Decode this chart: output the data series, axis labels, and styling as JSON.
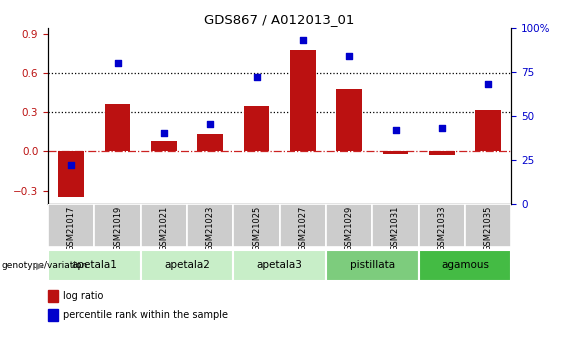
{
  "title": "GDS867 / A012013_01",
  "samples": [
    "GSM21017",
    "GSM21019",
    "GSM21021",
    "GSM21023",
    "GSM21025",
    "GSM21027",
    "GSM21029",
    "GSM21031",
    "GSM21033",
    "GSM21035"
  ],
  "log_ratio": [
    -0.35,
    0.36,
    0.08,
    0.13,
    0.35,
    0.78,
    0.48,
    -0.02,
    -0.03,
    0.32
  ],
  "percentile_rank": [
    22,
    80,
    40,
    45,
    72,
    93,
    84,
    42,
    43,
    68
  ],
  "groups": [
    {
      "name": "apetala1",
      "start": 0,
      "end": 2,
      "color": "#c8eec8"
    },
    {
      "name": "apetala2",
      "start": 2,
      "end": 4,
      "color": "#c8eec8"
    },
    {
      "name": "apetala3",
      "start": 4,
      "end": 6,
      "color": "#c8eec8"
    },
    {
      "name": "pistillata",
      "start": 6,
      "end": 8,
      "color": "#7dcc7d"
    },
    {
      "name": "agamous",
      "start": 8,
      "end": 10,
      "color": "#44bb44"
    }
  ],
  "ylim_left": [
    -0.4,
    0.95
  ],
  "ylim_right": [
    0,
    100
  ],
  "yticks_left": [
    -0.3,
    0.0,
    0.3,
    0.6,
    0.9
  ],
  "yticks_right": [
    0,
    25,
    50,
    75,
    100
  ],
  "hlines": [
    0.3,
    0.6
  ],
  "bar_color": "#bb1111",
  "dot_color": "#0000cc",
  "zero_line_color": "#cc2222",
  "sample_box_color": "#cccccc",
  "border_color": "#888888"
}
